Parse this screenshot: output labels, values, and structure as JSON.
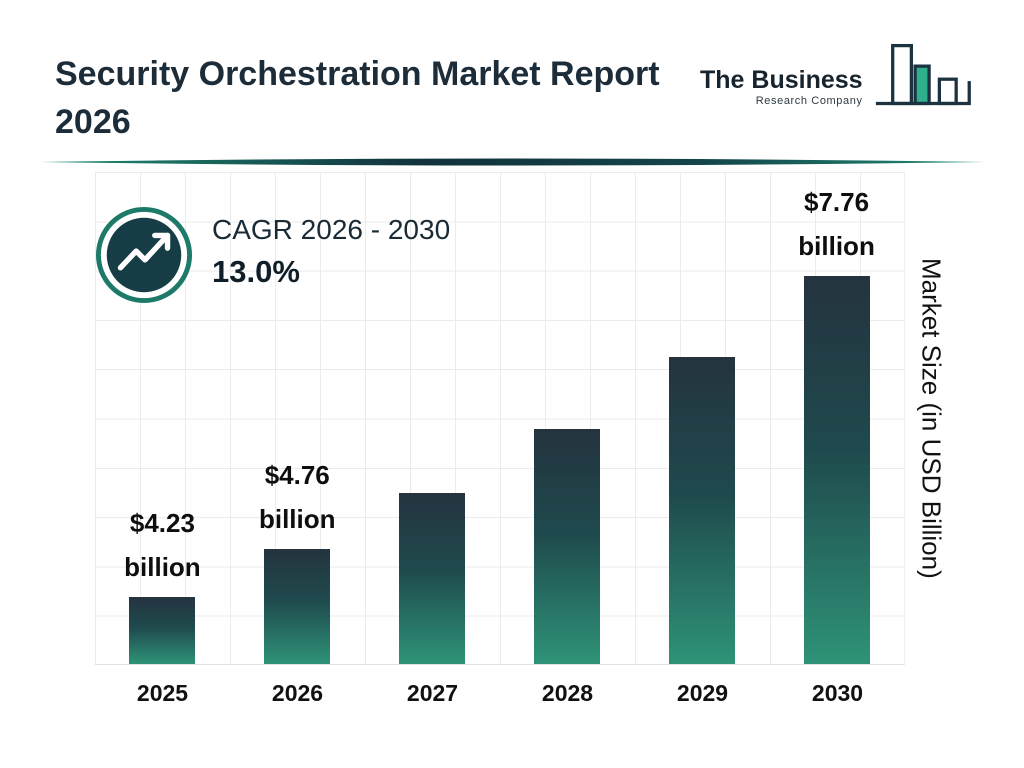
{
  "header": {
    "title_line1": "Security Orchestration Market Report",
    "title_line2": "2026",
    "logo": {
      "line1": "The Business",
      "line2": "Research Company"
    }
  },
  "cagr": {
    "label": "CAGR 2026 - 2030",
    "value": "13.0%"
  },
  "chart_data": {
    "type": "bar",
    "title": "Security Orchestration Market Report 2026",
    "categories": [
      "2025",
      "2026",
      "2027",
      "2028",
      "2029",
      "2030"
    ],
    "values": [
      4.23,
      4.76,
      5.38,
      6.08,
      6.87,
      7.76
    ],
    "value_labels": [
      {
        "amount": "$4.23",
        "unit": "billion"
      },
      {
        "amount": "$4.76",
        "unit": "billion"
      },
      null,
      null,
      null,
      {
        "amount": "$7.76",
        "unit": "billion"
      }
    ],
    "ylabel": "Market Size (in USD Billion)",
    "xlabel": "",
    "ylim": [
      3.5,
      8.9
    ],
    "grid": true,
    "legend": false,
    "cagr_label": "CAGR 2026 - 2030",
    "cagr_value": "13.0%"
  },
  "colors": {
    "bar_top": "#24333f",
    "bar_bottom": "#2e9377",
    "accent_teal": "#1d7a68",
    "icon_bg": "#163d46",
    "title_text": "#1d2c39",
    "grid_line": "#ebebeb"
  }
}
